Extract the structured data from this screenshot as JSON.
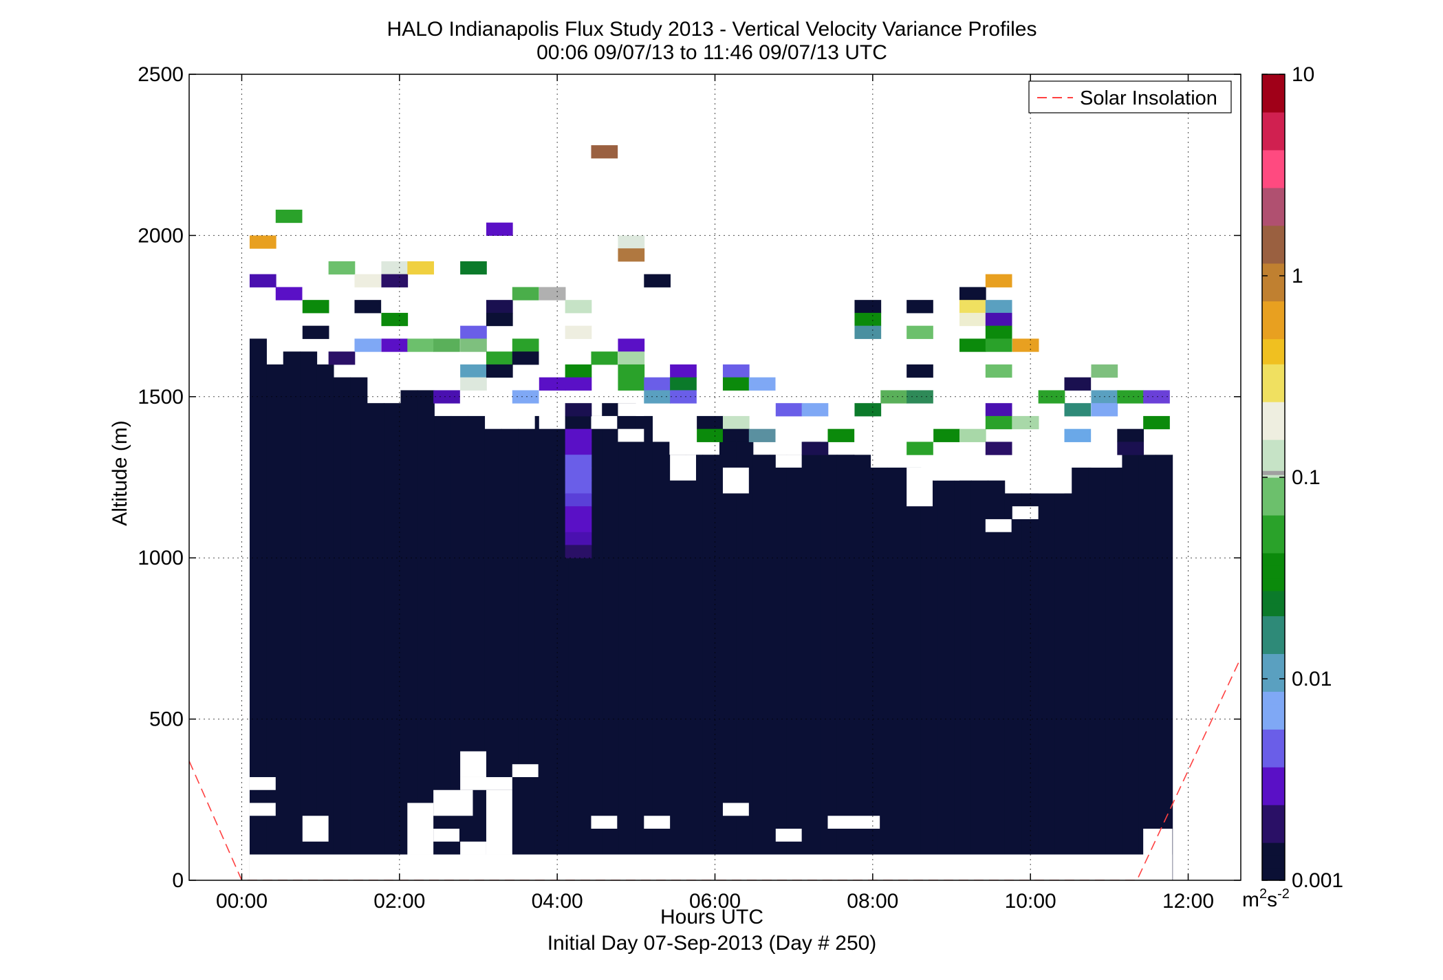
{
  "chart_data": {
    "type": "heatmap",
    "title": "HALO Indianapolis Flux Study 2013 - Vertical Velocity Variance Profiles",
    "subtitle": "00:06 09/07/13 to 11:46 09/07/13  UTC",
    "xlabel": "Hours UTC",
    "xlabel2": "Initial Day 07-Sep-2013 (Day # 250)",
    "ylabel": "Altitude (m)",
    "xlim": [
      -0.667,
      12.667
    ],
    "ylim": [
      0,
      2500
    ],
    "x_ticks": [
      {
        "value": 0,
        "label": "00:00"
      },
      {
        "value": 2,
        "label": "02:00"
      },
      {
        "value": 4,
        "label": "04:00"
      },
      {
        "value": 6,
        "label": "06:00"
      },
      {
        "value": 8,
        "label": "08:00"
      },
      {
        "value": 10,
        "label": "10:00"
      },
      {
        "value": 12,
        "label": "12:00"
      }
    ],
    "y_ticks": [
      {
        "value": 0,
        "label": "0"
      },
      {
        "value": 500,
        "label": "500"
      },
      {
        "value": 1000,
        "label": "1000"
      },
      {
        "value": 1500,
        "label": "1500"
      },
      {
        "value": 2000,
        "label": "2000"
      },
      {
        "value": 2500,
        "label": "2500"
      }
    ],
    "grid": true,
    "legend": {
      "placement": "top-right",
      "entries": [
        "Solar Insolation"
      ]
    },
    "colorbar": {
      "scale": "log",
      "range": [
        0.001,
        10
      ],
      "ticks": [
        {
          "value": 10,
          "label": "10"
        },
        {
          "value": 1,
          "label": "1"
        },
        {
          "value": 0.1,
          "label": "0.1"
        },
        {
          "value": 0.01,
          "label": "0.01"
        },
        {
          "value": 0.001,
          "label": "0.001"
        }
      ],
      "unit": "m",
      "unit_sup1": "2",
      "unit_mid": "s",
      "unit_sup2": "-2",
      "stops": [
        "#0b1035",
        "#2a1066",
        "#5a10c6",
        "#6a5ee8",
        "#7fa8f5",
        "#5aa0c0",
        "#2e8a78",
        "#0b7a2a",
        "#0b8a0b",
        "#2aa22a",
        "#6cc06c",
        "#c6e3c6",
        "#eeeee0",
        "#f0e060",
        "#f0c020",
        "#e8a020",
        "#c08030",
        "#9a6040",
        "#b05070",
        "#ff4a80",
        "#d02050",
        "#a00018"
      ]
    },
    "cell": {
      "x_width": 0.333,
      "y_height": 40
    },
    "solar_insolation": [
      {
        "x": -0.667,
        "y": 370
      },
      {
        "x": 0,
        "y": 0
      },
      {
        "x": 11.35,
        "y": 0
      },
      {
        "x": 12.667,
        "y": 690
      }
    ],
    "base_fill": {
      "color": "#0b1035",
      "x_start": 0.1,
      "x_end": 11.8,
      "columns_top": [
        1680,
        1600,
        1640,
        1640,
        1600,
        1560,
        1560,
        1480,
        1480,
        1520,
        1520,
        1440,
        1440,
        1440,
        1400,
        1400,
        1400,
        1440,
        1440,
        1440,
        1440,
        1480,
        1480,
        1440,
        1360,
        1320,
        1320,
        1320,
        1360,
        1360,
        1320,
        1320,
        1320,
        1360,
        1320,
        1320,
        1320,
        1280,
        1280,
        1280,
        1240,
        1240,
        1240,
        1240,
        1240,
        1200,
        1200,
        1200,
        1200,
        1280,
        1280,
        1280,
        1320,
        1320,
        1320
      ]
    },
    "gaps": [
      {
        "x": 0.1,
        "y": 0,
        "w": 1.7,
        "h": 80
      },
      {
        "x": 0.1,
        "y": 0,
        "w": 11.7,
        "h": 80
      },
      {
        "x": 0.1,
        "y": 280,
        "w": 0.33,
        "h": 40
      },
      {
        "x": 0.1,
        "y": 200,
        "w": 0.33,
        "h": 40
      },
      {
        "x": 0.1,
        "y": 120,
        "w": 0,
        "h": 40
      },
      {
        "x": 0.77,
        "y": 120,
        "w": 0.33,
        "h": 80
      },
      {
        "x": 2.1,
        "y": 80,
        "w": 0.33,
        "h": 160
      },
      {
        "x": 2.43,
        "y": 200,
        "w": 0.5,
        "h": 80
      },
      {
        "x": 2.77,
        "y": 280,
        "w": 0.66,
        "h": 40
      },
      {
        "x": 2.77,
        "y": 320,
        "w": 0.33,
        "h": 80
      },
      {
        "x": 2.77,
        "y": 80,
        "w": 0.33,
        "h": 40
      },
      {
        "x": 3.1,
        "y": 80,
        "w": 0.33,
        "h": 200
      },
      {
        "x": 3.43,
        "y": 320,
        "w": 0.33,
        "h": 40
      },
      {
        "x": 2.43,
        "y": 120,
        "w": 0.33,
        "h": 40
      },
      {
        "x": 4.43,
        "y": 160,
        "w": 0.33,
        "h": 40
      },
      {
        "x": 5.1,
        "y": 160,
        "w": 0.33,
        "h": 40
      },
      {
        "x": 6.1,
        "y": 200,
        "w": 0.33,
        "h": 40
      },
      {
        "x": 6.77,
        "y": 120,
        "w": 0.33,
        "h": 40
      },
      {
        "x": 7.43,
        "y": 160,
        "w": 0.66,
        "h": 40
      },
      {
        "x": 11.43,
        "y": 0,
        "w": 0.37,
        "h": 160
      },
      {
        "x": 5.43,
        "y": 1240,
        "w": 0.33,
        "h": 80
      },
      {
        "x": 6.1,
        "y": 1200,
        "w": 0.33,
        "h": 80
      },
      {
        "x": 6.77,
        "y": 1280,
        "w": 0.33,
        "h": 40
      },
      {
        "x": 8.43,
        "y": 1160,
        "w": 0.33,
        "h": 120
      },
      {
        "x": 9.77,
        "y": 1120,
        "w": 0.33,
        "h": 40
      },
      {
        "x": 9.43,
        "y": 1080,
        "w": 0.33,
        "h": 40
      },
      {
        "x": 4.77,
        "y": 1360,
        "w": 0.33,
        "h": 40
      },
      {
        "x": 4.43,
        "y": 1400,
        "w": 0.33,
        "h": 40
      },
      {
        "x": 4.77,
        "y": 1440,
        "w": 0.33,
        "h": 40
      },
      {
        "x": 3.1,
        "y": 1440,
        "w": 0.33,
        "h": 40
      },
      {
        "x": 3.77,
        "y": 1400,
        "w": 0.33,
        "h": 80
      },
      {
        "x": 5.77,
        "y": 1360,
        "w": 0.33,
        "h": 40
      },
      {
        "x": 6.77,
        "y": 1320,
        "w": 0.33,
        "h": 80
      },
      {
        "x": 7.77,
        "y": 1320,
        "w": 0.33,
        "h": 40
      },
      {
        "x": 8.77,
        "y": 1240,
        "w": 0.33,
        "h": 40
      },
      {
        "x": 9.1,
        "y": 1320,
        "w": 0.33,
        "h": 40
      },
      {
        "x": 10.1,
        "y": 1200,
        "w": 0.33,
        "h": 40
      },
      {
        "x": 10.77,
        "y": 1280,
        "w": 0.33,
        "h": 40
      },
      {
        "x": 11.43,
        "y": 1320,
        "w": 0.37,
        "h": 40
      }
    ],
    "cells": [
      {
        "x": 0.1,
        "y": 1960,
        "c": "#e8a020"
      },
      {
        "x": 0.43,
        "y": 2040,
        "c": "#2aa22a"
      },
      {
        "x": 0.1,
        "y": 1840,
        "c": "#4a10b0"
      },
      {
        "x": 0.43,
        "y": 1800,
        "c": "#5a10c6"
      },
      {
        "x": 0.77,
        "y": 1760,
        "c": "#0b8a0b"
      },
      {
        "x": 0.77,
        "y": 1680,
        "c": "#0b1035"
      },
      {
        "x": 1.1,
        "y": 1880,
        "c": "#6cc06c"
      },
      {
        "x": 1.1,
        "y": 1600,
        "c": "#2a1066"
      },
      {
        "x": 1.43,
        "y": 1840,
        "c": "#eeeee0"
      },
      {
        "x": 1.43,
        "y": 1760,
        "c": "#0b1035"
      },
      {
        "x": 1.43,
        "y": 1640,
        "c": "#7fa8f5"
      },
      {
        "x": 1.77,
        "y": 1880,
        "c": "#dde8dd"
      },
      {
        "x": 1.77,
        "y": 1840,
        "c": "#2a1066"
      },
      {
        "x": 1.77,
        "y": 1720,
        "c": "#0b8a0b"
      },
      {
        "x": 1.77,
        "y": 1640,
        "c": "#5a10c6"
      },
      {
        "x": 2.1,
        "y": 1880,
        "c": "#f0d040"
      },
      {
        "x": 2.1,
        "y": 1640,
        "c": "#6cc06c"
      },
      {
        "x": 2.43,
        "y": 1640,
        "c": "#5ab05a"
      },
      {
        "x": 2.43,
        "y": 1480,
        "c": "#4a10b0"
      },
      {
        "x": 2.77,
        "y": 1880,
        "c": "#0b7a2a"
      },
      {
        "x": 2.77,
        "y": 1680,
        "c": "#6a5ee8"
      },
      {
        "x": 2.77,
        "y": 1640,
        "c": "#7ec07e"
      },
      {
        "x": 2.77,
        "y": 1560,
        "c": "#5aa0c0"
      },
      {
        "x": 2.77,
        "y": 1520,
        "c": "#dde8dd"
      },
      {
        "x": 3.1,
        "y": 2000,
        "c": "#5a10c6"
      },
      {
        "x": 3.1,
        "y": 1760,
        "c": "#1a1050"
      },
      {
        "x": 3.1,
        "y": 1720,
        "c": "#0b1035"
      },
      {
        "x": 3.1,
        "y": 1600,
        "c": "#2aa22a"
      },
      {
        "x": 3.1,
        "y": 1560,
        "c": "#0b1035"
      },
      {
        "x": 3.43,
        "y": 1800,
        "c": "#4aae4a"
      },
      {
        "x": 3.43,
        "y": 1640,
        "c": "#2aa22a"
      },
      {
        "x": 3.43,
        "y": 1600,
        "c": "#0b1035"
      },
      {
        "x": 3.43,
        "y": 1480,
        "c": "#7fa8f5"
      },
      {
        "x": 3.77,
        "y": 1800,
        "c": "#b0b0b0"
      },
      {
        "x": 3.77,
        "y": 1520,
        "c": "#5a10c6"
      },
      {
        "x": 4.1,
        "y": 1760,
        "c": "#c6e3c6"
      },
      {
        "x": 4.1,
        "y": 1680,
        "c": "#eeeee0"
      },
      {
        "x": 4.1,
        "y": 1560,
        "c": "#0b8a0b"
      },
      {
        "x": 4.1,
        "y": 1520,
        "c": "#5a10c6"
      },
      {
        "x": 4.1,
        "y": 1440,
        "c": "#1a1050"
      },
      {
        "x": 4.1,
        "y": 1360,
        "c": "#5a10c6"
      },
      {
        "x": 4.1,
        "y": 1320,
        "c": "#5a10c6"
      },
      {
        "x": 4.1,
        "y": 1280,
        "c": "#6a5ee8"
      },
      {
        "x": 4.1,
        "y": 1240,
        "c": "#6a5ee8"
      },
      {
        "x": 4.1,
        "y": 1200,
        "c": "#6a5ee8"
      },
      {
        "x": 4.1,
        "y": 1160,
        "c": "#5a40d8"
      },
      {
        "x": 4.1,
        "y": 1120,
        "c": "#5a10c6"
      },
      {
        "x": 4.1,
        "y": 1080,
        "c": "#5a10c6"
      },
      {
        "x": 4.1,
        "y": 1040,
        "c": "#4a10b0"
      },
      {
        "x": 4.1,
        "y": 1000,
        "c": "#2a1066"
      },
      {
        "x": 4.43,
        "y": 2240,
        "c": "#9a6040"
      },
      {
        "x": 4.43,
        "y": 1600,
        "c": "#2aa22a"
      },
      {
        "x": 4.77,
        "y": 1960,
        "c": "#dde8dd"
      },
      {
        "x": 4.77,
        "y": 1920,
        "c": "#b07840"
      },
      {
        "x": 4.77,
        "y": 1640,
        "c": "#5a10c6"
      },
      {
        "x": 4.77,
        "y": 1600,
        "c": "#a8d8a8"
      },
      {
        "x": 4.77,
        "y": 1560,
        "c": "#2aa22a"
      },
      {
        "x": 4.77,
        "y": 1520,
        "c": "#2aa22a"
      },
      {
        "x": 5.1,
        "y": 1840,
        "c": "#0b1035"
      },
      {
        "x": 5.1,
        "y": 1520,
        "c": "#6a5ee8"
      },
      {
        "x": 5.1,
        "y": 1480,
        "c": "#5aa0c0"
      },
      {
        "x": 5.43,
        "y": 1560,
        "c": "#5a10c6"
      },
      {
        "x": 5.43,
        "y": 1520,
        "c": "#0b7a2a"
      },
      {
        "x": 5.43,
        "y": 1480,
        "c": "#6a5ee8"
      },
      {
        "x": 5.77,
        "y": 1400,
        "c": "#0b1035"
      },
      {
        "x": 5.77,
        "y": 1360,
        "c": "#0b8a0b"
      },
      {
        "x": 6.1,
        "y": 1560,
        "c": "#6a5ee8"
      },
      {
        "x": 6.1,
        "y": 1520,
        "c": "#0b8a0b"
      },
      {
        "x": 6.1,
        "y": 1400,
        "c": "#c6e3c6"
      },
      {
        "x": 6.1,
        "y": 1360,
        "c": "#0b1035"
      },
      {
        "x": 6.43,
        "y": 1520,
        "c": "#7fa8f5"
      },
      {
        "x": 6.43,
        "y": 1360,
        "c": "#5a90a0"
      },
      {
        "x": 6.77,
        "y": 1440,
        "c": "#6a5ee8"
      },
      {
        "x": 7.1,
        "y": 1440,
        "c": "#7fa8f5"
      },
      {
        "x": 7.1,
        "y": 1320,
        "c": "#1a1050"
      },
      {
        "x": 7.43,
        "y": 1360,
        "c": "#0b8a0b"
      },
      {
        "x": 7.77,
        "y": 1760,
        "c": "#0b1035"
      },
      {
        "x": 7.77,
        "y": 1720,
        "c": "#0b8a0b"
      },
      {
        "x": 7.77,
        "y": 1680,
        "c": "#4a90a0"
      },
      {
        "x": 7.77,
        "y": 1440,
        "c": "#0b7a2a"
      },
      {
        "x": 8.1,
        "y": 1480,
        "c": "#5ab05a"
      },
      {
        "x": 8.43,
        "y": 1760,
        "c": "#0b1035"
      },
      {
        "x": 8.43,
        "y": 1680,
        "c": "#6cc06c"
      },
      {
        "x": 8.43,
        "y": 1560,
        "c": "#0b1035"
      },
      {
        "x": 8.43,
        "y": 1480,
        "c": "#2e8a58"
      },
      {
        "x": 8.43,
        "y": 1320,
        "c": "#2aa22a"
      },
      {
        "x": 8.77,
        "y": 1360,
        "c": "#0b8a0b"
      },
      {
        "x": 9.1,
        "y": 1800,
        "c": "#0b1035"
      },
      {
        "x": 9.1,
        "y": 1760,
        "c": "#f0e060"
      },
      {
        "x": 9.1,
        "y": 1720,
        "c": "#eeeed0"
      },
      {
        "x": 9.1,
        "y": 1640,
        "c": "#0b8a0b"
      },
      {
        "x": 9.1,
        "y": 1360,
        "c": "#a8d8a8"
      },
      {
        "x": 9.43,
        "y": 1840,
        "c": "#e8a020"
      },
      {
        "x": 9.43,
        "y": 1760,
        "c": "#5aa0c0"
      },
      {
        "x": 9.43,
        "y": 1720,
        "c": "#4a10b0"
      },
      {
        "x": 9.43,
        "y": 1680,
        "c": "#0b8a0b"
      },
      {
        "x": 9.43,
        "y": 1640,
        "c": "#2aa22a"
      },
      {
        "x": 9.43,
        "y": 1560,
        "c": "#6cc06c"
      },
      {
        "x": 9.43,
        "y": 1440,
        "c": "#4a10b0"
      },
      {
        "x": 9.43,
        "y": 1400,
        "c": "#2aa22a"
      },
      {
        "x": 9.43,
        "y": 1320,
        "c": "#2a1066"
      },
      {
        "x": 9.77,
        "y": 1640,
        "c": "#e8a020"
      },
      {
        "x": 9.77,
        "y": 1400,
        "c": "#a8d8a8"
      },
      {
        "x": 10.1,
        "y": 1480,
        "c": "#2aa22a"
      },
      {
        "x": 10.43,
        "y": 1520,
        "c": "#1a1050"
      },
      {
        "x": 10.43,
        "y": 1440,
        "c": "#2e8a78"
      },
      {
        "x": 10.43,
        "y": 1360,
        "c": "#6aa8e8"
      },
      {
        "x": 10.77,
        "y": 1560,
        "c": "#7ec07e"
      },
      {
        "x": 10.77,
        "y": 1480,
        "c": "#5aa0c0"
      },
      {
        "x": 10.77,
        "y": 1440,
        "c": "#7fa8f5"
      },
      {
        "x": 11.1,
        "y": 1480,
        "c": "#2aa22a"
      },
      {
        "x": 11.1,
        "y": 1360,
        "c": "#0b1035"
      },
      {
        "x": 11.1,
        "y": 1320,
        "c": "#1a1050"
      },
      {
        "x": 11.43,
        "y": 1480,
        "c": "#6a40d8"
      },
      {
        "x": 11.43,
        "y": 1400,
        "c": "#0b8a0b"
      }
    ]
  }
}
